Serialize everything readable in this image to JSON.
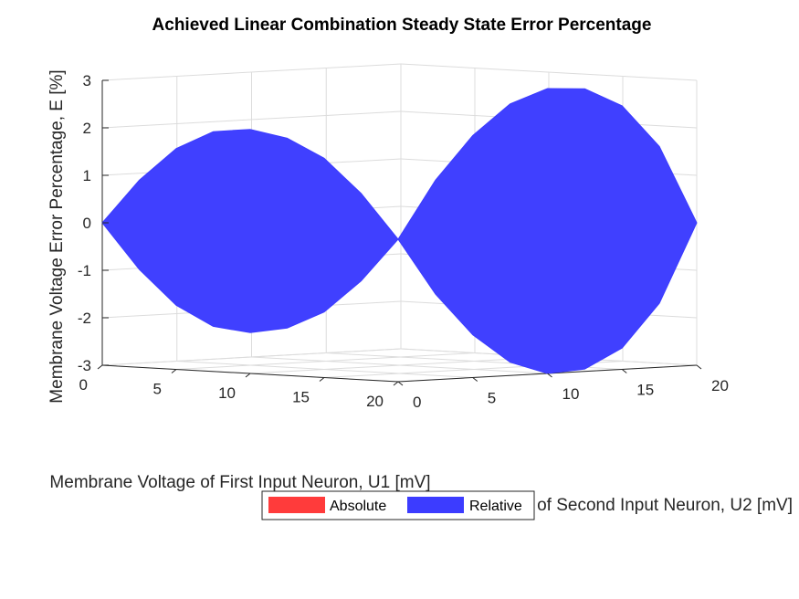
{
  "chart_data": {
    "type": "surface3d",
    "title": "Achieved Linear Combination Steady State Error Percentage",
    "xlabel": "Membrane Voltage of First Input Neuron, U1 [mV]",
    "ylabel": "Membrane Voltage of Second Input Neuron, U2 [mV]",
    "zlabel": "Membrane Voltage Error Percentage, E [%]",
    "xlim": [
      0,
      20
    ],
    "ylim": [
      0,
      20
    ],
    "zlim": [
      -3,
      3
    ],
    "xticks": [
      0,
      5,
      10,
      15,
      20
    ],
    "yticks": [
      0,
      5,
      10,
      15,
      20
    ],
    "zticks": [
      3,
      2,
      1,
      0,
      -1,
      -2,
      -3
    ],
    "grid": true,
    "legend": {
      "placement": "bottom-center",
      "entries": [
        {
          "label": "Absolute",
          "color": "#ff3b3b"
        },
        {
          "label": "Relative",
          "color": "#3c3cff"
        }
      ]
    },
    "series": [
      {
        "name": "Relative",
        "color": "#3c3cff",
        "lobes": [
          {
            "u1_range": [
              0,
              20
            ],
            "u2": 0,
            "upper_envelope": [
              [
                0,
                0
              ],
              [
                2.5,
                0.94
              ],
              [
                5,
                1.65
              ],
              [
                7.5,
                2.05
              ],
              [
                10,
                2.14
              ],
              [
                12.5,
                2.0
              ],
              [
                15,
                1.62
              ],
              [
                17.5,
                0.92
              ],
              [
                20,
                0
              ]
            ],
            "lower_envelope": [
              [
                0,
                0
              ],
              [
                2.5,
                -0.94
              ],
              [
                5,
                -1.65
              ],
              [
                7.5,
                -2.05
              ],
              [
                10,
                -2.14
              ],
              [
                12.5,
                -2.0
              ],
              [
                15,
                -1.62
              ],
              [
                17.5,
                -0.92
              ],
              [
                20,
                0
              ]
            ]
          },
          {
            "u1": 20,
            "u2_range": [
              0,
              20
            ],
            "upper_envelope": [
              [
                0,
                0
              ],
              [
                2.5,
                1.2
              ],
              [
                5,
                2.1
              ],
              [
                7.5,
                2.72
              ],
              [
                10,
                3.0
              ],
              [
                12.5,
                2.95
              ],
              [
                15,
                2.55
              ],
              [
                17.5,
                1.65
              ],
              [
                20,
                0
              ]
            ],
            "lower_envelope": [
              [
                0,
                0
              ],
              [
                2.5,
                -1.2
              ],
              [
                5,
                -2.1
              ],
              [
                7.5,
                -2.72
              ],
              [
                10,
                -3.0
              ],
              [
                12.5,
                -2.95
              ],
              [
                15,
                -2.55
              ],
              [
                17.5,
                -1.65
              ],
              [
                20,
                0
              ]
            ]
          }
        ]
      }
    ]
  }
}
